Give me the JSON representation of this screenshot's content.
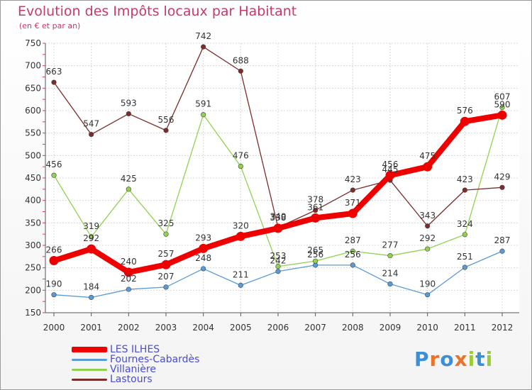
{
  "title": "Evolution des Impôts locaux par Habitant",
  "subtitle": "(en € et par an)",
  "logo": {
    "letters": [
      "P",
      "r",
      "o",
      "x",
      "i",
      "t",
      "i"
    ],
    "colors": [
      "#3a8fd6",
      "#e8732a",
      "#3a8fd6",
      "#e8732a",
      "#9acd32",
      "#3a8fd6",
      "#9acd32"
    ]
  },
  "chart_data": {
    "type": "line",
    "title": "Evolution des Impôts locaux par Habitant",
    "subtitle": "(en € et par an)",
    "xlabel": "",
    "ylabel": "",
    "x": [
      "2000",
      "2001",
      "2002",
      "2003",
      "2004",
      "2005",
      "2006",
      "2007",
      "2008",
      "2009",
      "2010",
      "2011",
      "2012"
    ],
    "ylim": [
      150,
      750
    ],
    "yticks": [
      150,
      200,
      250,
      300,
      350,
      400,
      450,
      500,
      550,
      600,
      650,
      700,
      750
    ],
    "grid": true,
    "legend_position": "bottom-left",
    "series": [
      {
        "name": "LES ILHES",
        "color": "#ee0000",
        "width": 8,
        "values": [
          266,
          292,
          240,
          257,
          293,
          320,
          338,
          361,
          371,
          456,
          475,
          576,
          590
        ]
      },
      {
        "name": "Fournes-Cabardès",
        "color": "#5b9bd5",
        "width": 1.3,
        "values": [
          190,
          184,
          202,
          207,
          248,
          211,
          242,
          256,
          256,
          214,
          190,
          251,
          287
        ]
      },
      {
        "name": "Villanière",
        "color": "#92d050",
        "width": 1.3,
        "values": [
          456,
          319,
          425,
          325,
          591,
          476,
          253,
          265,
          287,
          277,
          292,
          324,
          607
        ]
      },
      {
        "name": "Lastours",
        "color": "#7b2c2c",
        "width": 1.3,
        "values": [
          663,
          547,
          593,
          556,
          742,
          688,
          340,
          378,
          423,
          445,
          343,
          423,
          429
        ]
      }
    ]
  }
}
